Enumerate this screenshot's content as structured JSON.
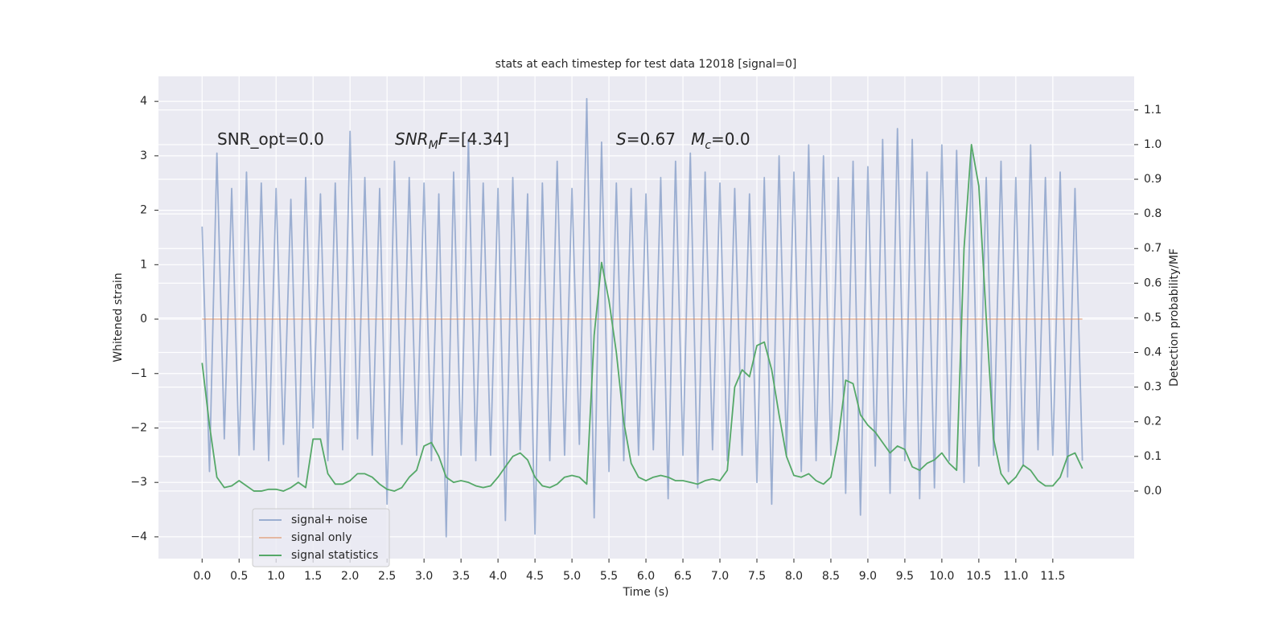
{
  "chart_data": {
    "type": "line",
    "title": "stats at each timestep for test data 12018 [signal=0]",
    "xlabel": "Time (s)",
    "ylabel": "Whitened strain",
    "y2label": "Detection probability/MF",
    "annotations": [
      {
        "parts": [
          {
            "text": "SNR_opt=0.0",
            "style": "normal"
          }
        ]
      },
      {
        "parts": [
          {
            "text": "SNR",
            "style": "italic"
          },
          {
            "text": "M",
            "style": "italic-sub"
          },
          {
            "text": "F",
            "style": "italic"
          },
          {
            "text": "=[4.34]",
            "style": "normal"
          }
        ]
      },
      {
        "parts": [
          {
            "text": "S",
            "style": "italic"
          },
          {
            "text": "=0.67   ",
            "style": "normal"
          },
          {
            "text": "M",
            "style": "italic"
          },
          {
            "text": "c",
            "style": "italic-sub"
          },
          {
            "text": "=0.0",
            "style": "normal"
          }
        ]
      }
    ],
    "x": [
      0.0,
      0.1,
      0.2,
      0.3,
      0.4,
      0.5,
      0.6,
      0.7,
      0.8,
      0.9,
      1.0,
      1.1,
      1.2,
      1.3,
      1.4,
      1.5,
      1.6,
      1.7,
      1.8,
      1.9,
      2.0,
      2.1,
      2.2,
      2.3,
      2.4,
      2.5,
      2.6,
      2.7,
      2.8,
      2.9,
      3.0,
      3.1,
      3.2,
      3.3,
      3.4,
      3.5,
      3.6,
      3.7,
      3.8,
      3.9,
      4.0,
      4.1,
      4.2,
      4.3,
      4.4,
      4.5,
      4.6,
      4.7,
      4.8,
      4.9,
      5.0,
      5.1,
      5.2,
      5.3,
      5.4,
      5.5,
      5.6,
      5.7,
      5.8,
      5.9,
      6.0,
      6.1,
      6.2,
      6.3,
      6.4,
      6.5,
      6.6,
      6.7,
      6.8,
      6.9,
      7.0,
      7.1,
      7.2,
      7.3,
      7.4,
      7.5,
      7.6,
      7.7,
      7.8,
      7.9,
      8.0,
      8.1,
      8.2,
      8.3,
      8.4,
      8.5,
      8.6,
      8.7,
      8.8,
      8.9,
      9.0,
      9.1,
      9.2,
      9.3,
      9.4,
      9.5,
      9.6,
      9.7,
      9.8,
      9.9,
      10.0,
      10.1,
      10.2,
      10.3,
      10.4,
      10.5,
      10.6,
      10.7,
      10.8,
      10.9,
      11.0,
      11.1,
      11.2,
      11.3,
      11.4,
      11.5,
      11.6,
      11.7,
      11.8,
      11.9
    ],
    "series": [
      {
        "name": "signal+ noise",
        "color": "#4c72b0",
        "opacity": 0.5,
        "values": [
          1.7,
          -2.8,
          3.05,
          -2.2,
          2.4,
          -2.5,
          2.7,
          -2.4,
          2.5,
          -2.6,
          2.4,
          -2.3,
          2.2,
          -2.9,
          2.6,
          -2.0,
          2.3,
          -2.6,
          2.5,
          -2.4,
          3.45,
          -2.2,
          2.6,
          -2.5,
          2.4,
          -3.4,
          2.9,
          -2.3,
          2.6,
          -2.5,
          2.5,
          -2.6,
          2.3,
          -4.0,
          2.7,
          -2.5,
          3.3,
          -2.6,
          2.5,
          -2.5,
          2.4,
          -3.7,
          2.6,
          -2.4,
          2.3,
          -3.95,
          2.5,
          -2.6,
          2.9,
          -2.5,
          2.4,
          -2.3,
          4.05,
          -3.65,
          3.25,
          -2.8,
          2.5,
          -2.6,
          2.4,
          -2.5,
          2.3,
          -2.4,
          2.6,
          -3.3,
          2.9,
          -2.5,
          3.05,
          -3.1,
          2.7,
          -2.4,
          2.5,
          -2.6,
          2.4,
          -2.5,
          2.3,
          -3.0,
          2.6,
          -3.4,
          3.0,
          -2.5,
          2.7,
          -2.8,
          3.2,
          -2.6,
          3.0,
          -2.5,
          2.6,
          -3.2,
          2.9,
          -3.6,
          2.8,
          -2.7,
          3.3,
          -3.2,
          3.5,
          -2.6,
          3.3,
          -3.3,
          2.7,
          -3.1,
          3.2,
          -2.6,
          3.1,
          -3.0,
          3.05,
          -2.7,
          2.6,
          -2.5,
          2.9,
          -2.8,
          2.6,
          -2.7,
          3.2,
          -2.4,
          2.6,
          -2.5,
          2.7,
          -2.9,
          2.4,
          -2.6
        ]
      },
      {
        "name": "signal only",
        "color": "#dd8452",
        "opacity": 0.5,
        "values": [
          0,
          0,
          0,
          0,
          0,
          0,
          0,
          0,
          0,
          0,
          0,
          0,
          0,
          0,
          0,
          0,
          0,
          0,
          0,
          0,
          0,
          0,
          0,
          0,
          0,
          0,
          0,
          0,
          0,
          0,
          0,
          0,
          0,
          0,
          0,
          0,
          0,
          0,
          0,
          0,
          0,
          0,
          0,
          0,
          0,
          0,
          0,
          0,
          0,
          0,
          0,
          0,
          0,
          0,
          0,
          0,
          0,
          0,
          0,
          0,
          0,
          0,
          0,
          0,
          0,
          0,
          0,
          0,
          0,
          0,
          0,
          0,
          0,
          0,
          0,
          0,
          0,
          0,
          0,
          0,
          0,
          0,
          0,
          0,
          0,
          0,
          0,
          0,
          0,
          0,
          0,
          0,
          0,
          0,
          0,
          0,
          0,
          0,
          0,
          0,
          0,
          0,
          0,
          0,
          0,
          0,
          0,
          0,
          0,
          0,
          0,
          0,
          0,
          0,
          0,
          0,
          0,
          0,
          0,
          0
        ]
      },
      {
        "name": "signal statistics",
        "color": "#55a868",
        "opacity": 1,
        "axis": "y2",
        "values": [
          0.37,
          0.19,
          0.04,
          0.01,
          0.015,
          0.03,
          0.015,
          0.0,
          0.0,
          0.005,
          0.005,
          0.0,
          0.01,
          0.025,
          0.01,
          0.15,
          0.15,
          0.05,
          0.02,
          0.02,
          0.03,
          0.05,
          0.05,
          0.04,
          0.02,
          0.005,
          0.0,
          0.01,
          0.04,
          0.06,
          0.13,
          0.14,
          0.1,
          0.04,
          0.025,
          0.03,
          0.025,
          0.015,
          0.01,
          0.015,
          0.04,
          0.07,
          0.1,
          0.11,
          0.09,
          0.04,
          0.015,
          0.01,
          0.02,
          0.04,
          0.045,
          0.04,
          0.02,
          0.45,
          0.66,
          0.55,
          0.4,
          0.2,
          0.08,
          0.04,
          0.03,
          0.04,
          0.045,
          0.04,
          0.03,
          0.03,
          0.025,
          0.02,
          0.03,
          0.035,
          0.03,
          0.06,
          0.3,
          0.35,
          0.33,
          0.42,
          0.43,
          0.35,
          0.22,
          0.1,
          0.045,
          0.04,
          0.05,
          0.03,
          0.02,
          0.04,
          0.15,
          0.32,
          0.31,
          0.22,
          0.19,
          0.17,
          0.14,
          0.11,
          0.13,
          0.12,
          0.07,
          0.06,
          0.08,
          0.09,
          0.11,
          0.08,
          0.06,
          0.7,
          1.0,
          0.88,
          0.5,
          0.15,
          0.05,
          0.02,
          0.04,
          0.075,
          0.06,
          0.03,
          0.015,
          0.015,
          0.04,
          0.1,
          0.11,
          0.065
        ]
      }
    ],
    "xlim": [
      -0.59,
      12.6
    ],
    "ylim": [
      -4.4,
      4.46
    ],
    "y2lim": [
      -0.195,
      1.197
    ],
    "xticks": [
      {
        "value": 0,
        "label": "0.0"
      },
      {
        "value": 0.5,
        "label": "0.5"
      },
      {
        "value": 1,
        "label": "1.0"
      },
      {
        "value": 1.5,
        "label": "1.5"
      },
      {
        "value": 2,
        "label": "2.0"
      },
      {
        "value": 2.5,
        "label": "2.5"
      },
      {
        "value": 3,
        "label": "3.0"
      },
      {
        "value": 3.5,
        "label": "3.5"
      },
      {
        "value": 4,
        "label": "4.0"
      },
      {
        "value": 4.5,
        "label": "4.5"
      },
      {
        "value": 5,
        "label": "5.0"
      },
      {
        "value": 5.5,
        "label": "5.5"
      },
      {
        "value": 6,
        "label": "6.0"
      },
      {
        "value": 6.5,
        "label": "6.5"
      },
      {
        "value": 7,
        "label": "7.0"
      },
      {
        "value": 7.5,
        "label": "7.5"
      },
      {
        "value": 8,
        "label": "8.0"
      },
      {
        "value": 8.5,
        "label": "8.5"
      },
      {
        "value": 9,
        "label": "9.0"
      },
      {
        "value": 9.5,
        "label": "9.5"
      },
      {
        "value": 10,
        "label": "10.0"
      },
      {
        "value": 10.5,
        "label": "10.5"
      },
      {
        "value": 11,
        "label": "11.0"
      },
      {
        "value": 11.5,
        "label": "11.5"
      }
    ],
    "yticks": [
      {
        "value": -4,
        "label": "−4"
      },
      {
        "value": -3,
        "label": "−3"
      },
      {
        "value": -2,
        "label": "−2"
      },
      {
        "value": -1,
        "label": "−1"
      },
      0,
      1,
      2,
      3,
      4
    ],
    "y2ticks": [
      {
        "value": 0,
        "label": "0.0"
      },
      {
        "value": 0.1,
        "label": "0.1"
      },
      {
        "value": 0.2,
        "label": "0.2"
      },
      {
        "value": 0.3,
        "label": "0.3"
      },
      {
        "value": 0.4,
        "label": "0.4"
      },
      {
        "value": 0.5,
        "label": "0.5"
      },
      {
        "value": 0.6,
        "label": "0.6"
      },
      {
        "value": 0.7,
        "label": "0.7"
      },
      {
        "value": 0.8,
        "label": "0.8"
      },
      {
        "value": 0.9,
        "label": "0.9"
      },
      {
        "value": 1,
        "label": "1.0"
      },
      {
        "value": 1.1,
        "label": "1.1"
      }
    ],
    "grid": true,
    "legend": "lower left"
  }
}
